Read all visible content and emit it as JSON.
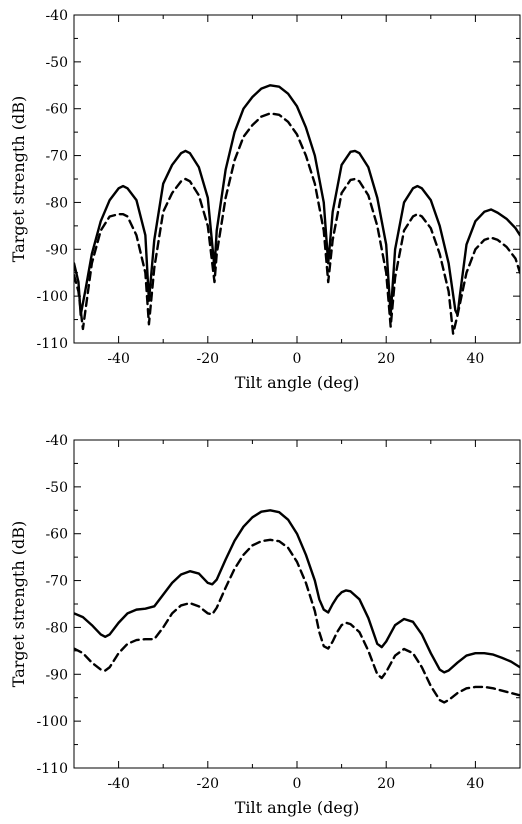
{
  "chart_data": [
    {
      "type": "line",
      "xlabel": "Tilt angle (deg)",
      "ylabel": "Target strength (dB)",
      "xlim": [
        -50,
        50
      ],
      "ylim": [
        -110,
        -40
      ],
      "xticks": [
        -40,
        -20,
        0,
        20,
        40
      ],
      "yticks": [
        -40,
        -50,
        -60,
        -70,
        -80,
        -90,
        -100,
        -110
      ],
      "grid": false,
      "series": [
        {
          "style": "solid",
          "points": [
            [
              -50,
              -93
            ],
            [
              -49,
              -97
            ],
            [
              -48.5,
              -104
            ],
            [
              -47.5,
              -99
            ],
            [
              -46,
              -91
            ],
            [
              -44,
              -84
            ],
            [
              -42,
              -79.5
            ],
            [
              -40,
              -77
            ],
            [
              -39,
              -76.5
            ],
            [
              -38,
              -77
            ],
            [
              -36,
              -79.5
            ],
            [
              -34,
              -87
            ],
            [
              -33.2,
              -101
            ],
            [
              -32,
              -88
            ],
            [
              -30,
              -76
            ],
            [
              -28,
              -72
            ],
            [
              -26,
              -69.5
            ],
            [
              -25,
              -69
            ],
            [
              -24,
              -69.5
            ],
            [
              -22,
              -72.5
            ],
            [
              -20,
              -79
            ],
            [
              -19,
              -89
            ],
            [
              -18.5,
              -94
            ],
            [
              -18,
              -86
            ],
            [
              -16,
              -73
            ],
            [
              -14,
              -65
            ],
            [
              -12,
              -60
            ],
            [
              -10,
              -57.5
            ],
            [
              -8,
              -55.7
            ],
            [
              -6,
              -55
            ],
            [
              -4,
              -55.3
            ],
            [
              -2,
              -56.8
            ],
            [
              0,
              -59.5
            ],
            [
              2,
              -64
            ],
            [
              4,
              -70
            ],
            [
              6,
              -80
            ],
            [
              7,
              -93
            ],
            [
              8,
              -82
            ],
            [
              10,
              -72
            ],
            [
              12,
              -69.2
            ],
            [
              13,
              -69
            ],
            [
              14,
              -69.5
            ],
            [
              16,
              -72.5
            ],
            [
              18,
              -79
            ],
            [
              20,
              -89
            ],
            [
              21,
              -104
            ],
            [
              22,
              -90
            ],
            [
              24,
              -80
            ],
            [
              26,
              -77
            ],
            [
              27,
              -76.5
            ],
            [
              28,
              -77
            ],
            [
              30,
              -79.5
            ],
            [
              32,
              -85
            ],
            [
              34,
              -93
            ],
            [
              35.5,
              -103
            ],
            [
              36,
              -104
            ],
            [
              36.5,
              -100
            ],
            [
              38,
              -89
            ],
            [
              40,
              -84
            ],
            [
              42,
              -82
            ],
            [
              43.5,
              -81.5
            ],
            [
              45,
              -82.2
            ],
            [
              47,
              -83.5
            ],
            [
              49,
              -85.5
            ],
            [
              50,
              -87
            ]
          ]
        },
        {
          "style": "dashed",
          "points": [
            [
              -50,
              -95.5
            ],
            [
              -49,
              -99
            ],
            [
              -48,
              -107
            ],
            [
              -47,
              -100
            ],
            [
              -46,
              -93
            ],
            [
              -44,
              -86
            ],
            [
              -42,
              -83
            ],
            [
              -40,
              -82.5
            ],
            [
              -39,
              -82.5
            ],
            [
              -38,
              -83
            ],
            [
              -36,
              -87
            ],
            [
              -34,
              -95
            ],
            [
              -33.2,
              -106
            ],
            [
              -32,
              -94
            ],
            [
              -30,
              -82
            ],
            [
              -28,
              -78
            ],
            [
              -26,
              -75.5
            ],
            [
              -25,
              -75
            ],
            [
              -24,
              -75.5
            ],
            [
              -22,
              -78.5
            ],
            [
              -20,
              -85
            ],
            [
              -19,
              -93
            ],
            [
              -18.5,
              -97
            ],
            [
              -18,
              -91
            ],
            [
              -16,
              -79
            ],
            [
              -14,
              -71
            ],
            [
              -12,
              -66
            ],
            [
              -10,
              -63.5
            ],
            [
              -8,
              -61.7
            ],
            [
              -6,
              -61
            ],
            [
              -4,
              -61.3
            ],
            [
              -2,
              -62.8
            ],
            [
              0,
              -65.5
            ],
            [
              2,
              -70
            ],
            [
              4,
              -76
            ],
            [
              6,
              -86
            ],
            [
              7,
              -97
            ],
            [
              8,
              -88
            ],
            [
              10,
              -78
            ],
            [
              12,
              -75.2
            ],
            [
              13,
              -75
            ],
            [
              14,
              -75.5
            ],
            [
              16,
              -78.5
            ],
            [
              18,
              -85
            ],
            [
              20,
              -95
            ],
            [
              21,
              -106.5
            ],
            [
              22,
              -96
            ],
            [
              24,
              -86
            ],
            [
              26,
              -83
            ],
            [
              27,
              -82.5
            ],
            [
              28,
              -83
            ],
            [
              30,
              -85.5
            ],
            [
              32,
              -91
            ],
            [
              34,
              -99
            ],
            [
              35,
              -108
            ],
            [
              36,
              -104
            ],
            [
              38,
              -95
            ],
            [
              40,
              -90
            ],
            [
              42,
              -88
            ],
            [
              43.5,
              -87.5
            ],
            [
              45,
              -88
            ],
            [
              47,
              -89.5
            ],
            [
              49,
              -92
            ],
            [
              50,
              -95
            ]
          ]
        }
      ]
    },
    {
      "type": "line",
      "xlabel": "Tilt angle (deg)",
      "ylabel": "Target strength (dB)",
      "xlim": [
        -50,
        50
      ],
      "ylim": [
        -110,
        -40
      ],
      "xticks": [
        -40,
        -20,
        0,
        20,
        40
      ],
      "yticks": [
        -40,
        -50,
        -60,
        -70,
        -80,
        -90,
        -100,
        -110
      ],
      "grid": false,
      "series": [
        {
          "style": "solid",
          "points": [
            [
              -50,
              -77
            ],
            [
              -48,
              -77.8
            ],
            [
              -46,
              -79.5
            ],
            [
              -44,
              -81.5
            ],
            [
              -43,
              -82
            ],
            [
              -42,
              -81.5
            ],
            [
              -40,
              -79
            ],
            [
              -38,
              -77
            ],
            [
              -36,
              -76.2
            ],
            [
              -34,
              -76
            ],
            [
              -32,
              -75.5
            ],
            [
              -30,
              -73
            ],
            [
              -28,
              -70.5
            ],
            [
              -26,
              -68.7
            ],
            [
              -24,
              -68
            ],
            [
              -22,
              -68.5
            ],
            [
              -20,
              -70.5
            ],
            [
              -19,
              -70.8
            ],
            [
              -18,
              -69.8
            ],
            [
              -16,
              -65.5
            ],
            [
              -14,
              -61.5
            ],
            [
              -12,
              -58.5
            ],
            [
              -10,
              -56.5
            ],
            [
              -8,
              -55.3
            ],
            [
              -6,
              -55
            ],
            [
              -4,
              -55.4
            ],
            [
              -2,
              -57
            ],
            [
              0,
              -60
            ],
            [
              2,
              -64.5
            ],
            [
              4,
              -70
            ],
            [
              5,
              -74
            ],
            [
              6,
              -76.2
            ],
            [
              7,
              -76.8
            ],
            [
              8,
              -75
            ],
            [
              9,
              -73.5
            ],
            [
              10,
              -72.5
            ],
            [
              11,
              -72.1
            ],
            [
              12,
              -72.3
            ],
            [
              14,
              -74
            ],
            [
              16,
              -78
            ],
            [
              18,
              -83.5
            ],
            [
              19,
              -84.2
            ],
            [
              20,
              -83
            ],
            [
              22,
              -79.5
            ],
            [
              24,
              -78.2
            ],
            [
              26,
              -78.8
            ],
            [
              28,
              -81.5
            ],
            [
              30,
              -85.5
            ],
            [
              32,
              -89
            ],
            [
              33,
              -89.6
            ],
            [
              34,
              -89.2
            ],
            [
              36,
              -87.5
            ],
            [
              38,
              -86
            ],
            [
              40,
              -85.5
            ],
            [
              42,
              -85.5
            ],
            [
              44,
              -85.8
            ],
            [
              46,
              -86.5
            ],
            [
              48,
              -87.3
            ],
            [
              50,
              -88.5
            ]
          ]
        },
        {
          "style": "dashed",
          "points": [
            [
              -50,
              -84.5
            ],
            [
              -48,
              -85.5
            ],
            [
              -46,
              -87.5
            ],
            [
              -44,
              -89
            ],
            [
              -43,
              -89.2
            ],
            [
              -42,
              -88.5
            ],
            [
              -40,
              -85.5
            ],
            [
              -38,
              -83.5
            ],
            [
              -36,
              -82.7
            ],
            [
              -34,
              -82.5
            ],
            [
              -32,
              -82.5
            ],
            [
              -30,
              -80
            ],
            [
              -28,
              -77
            ],
            [
              -26,
              -75.3
            ],
            [
              -24,
              -74.8
            ],
            [
              -22,
              -75.5
            ],
            [
              -20,
              -77
            ],
            [
              -19,
              -77.2
            ],
            [
              -18,
              -75.8
            ],
            [
              -16,
              -71.5
            ],
            [
              -14,
              -67.5
            ],
            [
              -12,
              -64.5
            ],
            [
              -10,
              -62.5
            ],
            [
              -8,
              -61.6
            ],
            [
              -6,
              -61.3
            ],
            [
              -4,
              -61.6
            ],
            [
              -2,
              -63
            ],
            [
              0,
              -66
            ],
            [
              2,
              -70.5
            ],
            [
              4,
              -76.5
            ],
            [
              5,
              -81
            ],
            [
              6,
              -84
            ],
            [
              7,
              -84.5
            ],
            [
              8,
              -83
            ],
            [
              9,
              -81
            ],
            [
              10,
              -79.5
            ],
            [
              11,
              -79
            ],
            [
              12,
              -79.3
            ],
            [
              14,
              -81
            ],
            [
              16,
              -85
            ],
            [
              18,
              -90
            ],
            [
              19,
              -90.8
            ],
            [
              20,
              -89.5
            ],
            [
              22,
              -86
            ],
            [
              24,
              -84.6
            ],
            [
              26,
              -85.5
            ],
            [
              28,
              -88.5
            ],
            [
              30,
              -92.5
            ],
            [
              32,
              -95.5
            ],
            [
              33,
              -96
            ],
            [
              34,
              -95.5
            ],
            [
              36,
              -94
            ],
            [
              38,
              -93
            ],
            [
              40,
              -92.7
            ],
            [
              42,
              -92.7
            ],
            [
              44,
              -93
            ],
            [
              46,
              -93.5
            ],
            [
              48,
              -94
            ],
            [
              50,
              -94.5
            ]
          ]
        }
      ]
    }
  ]
}
